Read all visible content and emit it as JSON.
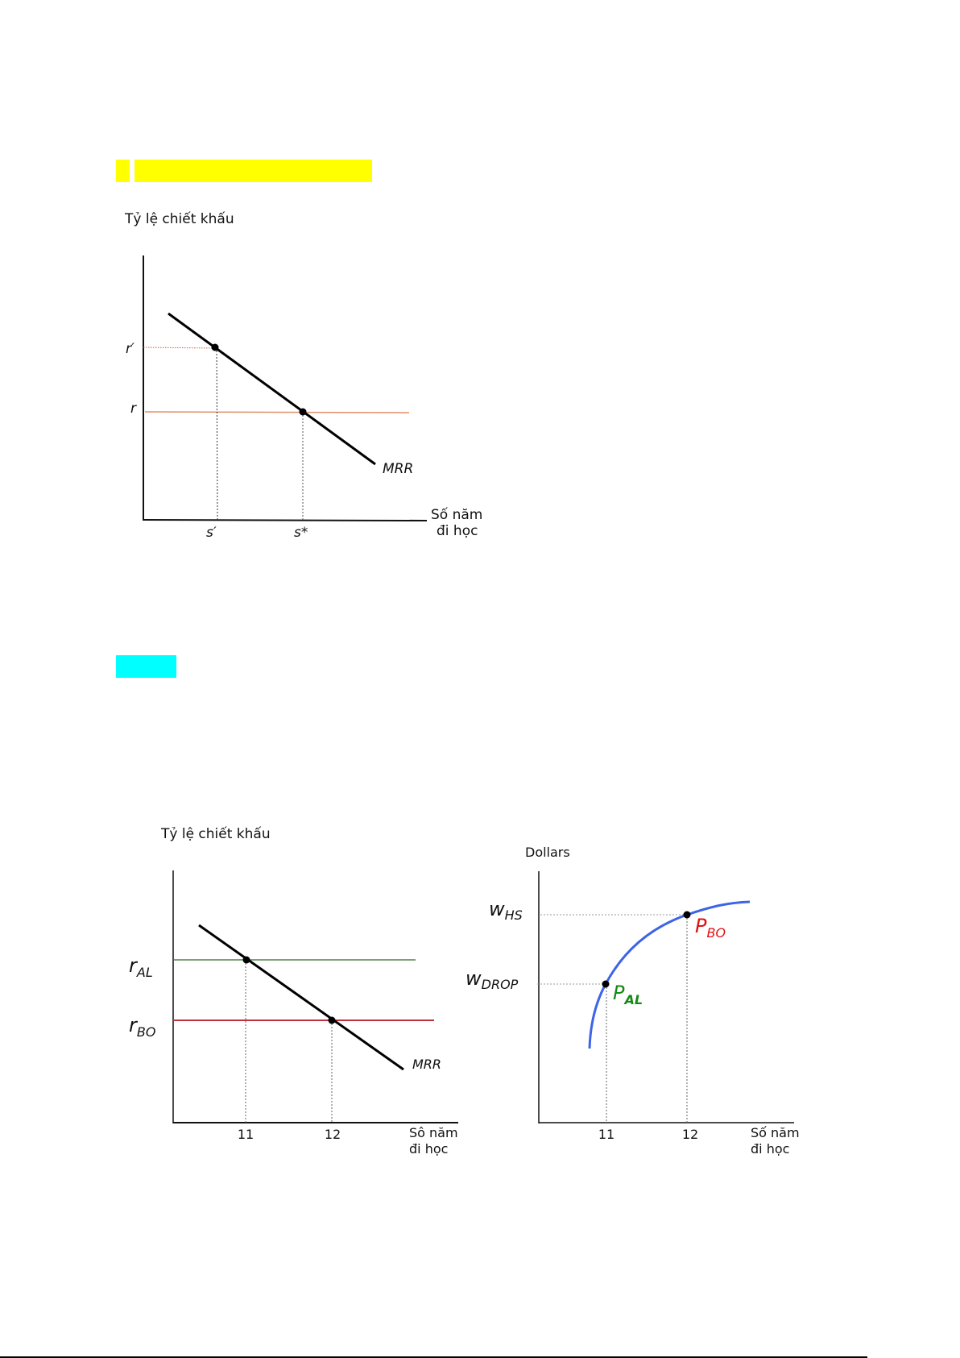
{
  "colors": {
    "highlight_yellow": "#ffff00",
    "highlight_cyan": "#00ffff",
    "r_line": "#e0906a",
    "r_al_line": "#2e6b2e",
    "r_bo_line": "#c0303a",
    "curve": "#3c64e6",
    "p_bo": "#e01010",
    "p_al": "#138a13"
  },
  "chart1": {
    "ylabel": "Tỷ lệ chiết khấu",
    "xlabel_line1": "Số năm",
    "xlabel_line2": "đi học",
    "curve_label": "MRR",
    "y_ticks": [
      "r′",
      "r"
    ],
    "x_ticks": [
      "s′",
      "s*"
    ]
  },
  "chart2": {
    "ylabel": "Tỷ lệ chiết khấu",
    "xlabel_line1": "Sô năm",
    "xlabel_line2": "đi học",
    "curve_label": "MRR",
    "r_al": {
      "main": "r",
      "sub": "AL"
    },
    "r_bo": {
      "main": "r",
      "sub": "BO"
    },
    "x_ticks": [
      "11",
      "12"
    ]
  },
  "chart3": {
    "ylabel": "Dollars",
    "xlabel_line1": "Số năm",
    "xlabel_line2": "đi học",
    "w_hs": {
      "main": "w",
      "sub": "HS"
    },
    "w_drop": {
      "main": "w",
      "sub": "DROP"
    },
    "p_bo": {
      "main": "P",
      "sub": "BO"
    },
    "p_al": {
      "main": "P",
      "sub": "AL"
    },
    "x_ticks": [
      "11",
      "12"
    ]
  }
}
